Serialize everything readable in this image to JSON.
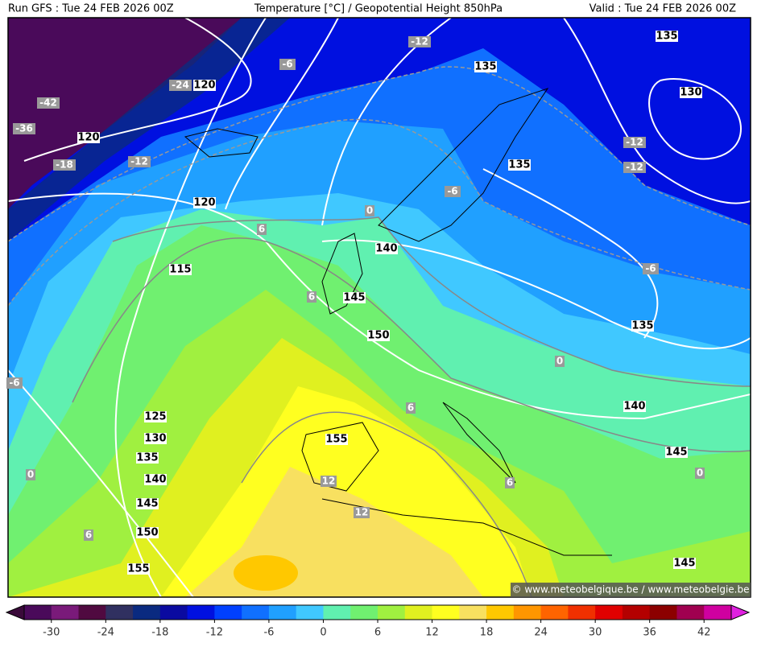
{
  "header": {
    "run": "Run GFS : Tue 24 FEB 2026 00Z",
    "title": "Temperature [°C] / Geopotential Height 850hPa",
    "valid": "Valid : Tue 24 FEB 2026 00Z"
  },
  "height_labels": [
    "135",
    "135",
    "130",
    "120",
    "120",
    "120",
    "115",
    "140",
    "145",
    "150",
    "155",
    "125",
    "130",
    "135",
    "140",
    "145",
    "150",
    "155",
    "135",
    "140",
    "145",
    "145",
    "135"
  ],
  "temperature_labels": [
    "-12",
    "-6",
    "-24",
    "-42",
    "-36",
    "-18",
    "-12",
    "-12",
    "-12",
    "-6",
    "0",
    "6",
    "6",
    "6",
    "-6",
    "0",
    "-6",
    "0",
    "12",
    "12",
    "6",
    "6",
    "0"
  ],
  "credit": "© www.meteobelgique.be / www.meteobelgie.be",
  "colorbar": {
    "range": [
      -33,
      45
    ],
    "ticks": [
      -30,
      -24,
      -18,
      -12,
      -6,
      0,
      6,
      12,
      18,
      24,
      30,
      36,
      42
    ],
    "under_color": "#3a0a3a",
    "over_color": "#e020e0",
    "colors": [
      "#4a0a5a",
      "#7a1a7a",
      "#500a40",
      "#303060",
      "#0a2a80",
      "#0a0aa0",
      "#0010e0",
      "#0040ff",
      "#1070ff",
      "#20a0ff",
      "#40c8ff",
      "#60f0b0",
      "#70f070",
      "#a0f040",
      "#e0f020",
      "#ffff20",
      "#f8e060",
      "#ffc800",
      "#ff9600",
      "#ff6400",
      "#f03000",
      "#e00000",
      "#b40000",
      "#8c0000",
      "#a00050",
      "#d000a0"
    ]
  }
}
